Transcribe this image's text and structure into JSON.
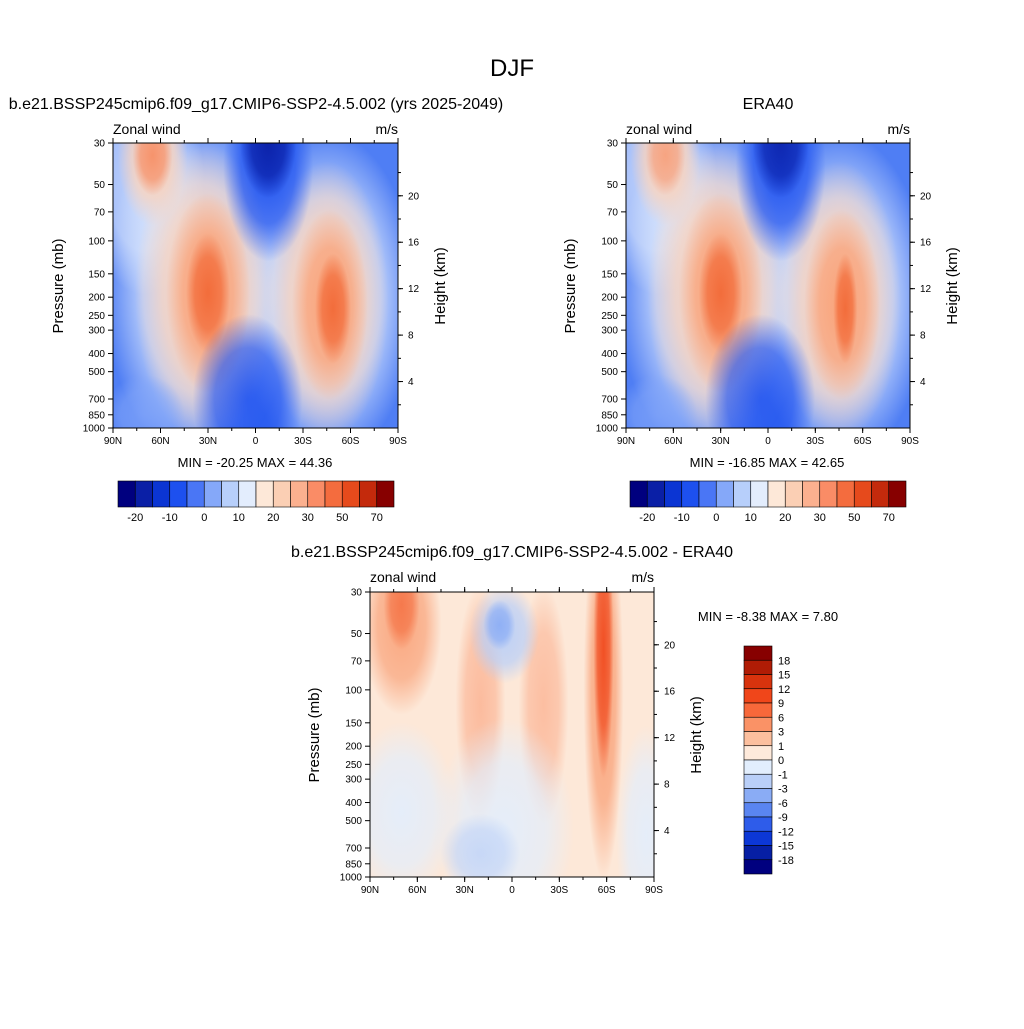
{
  "title": "DJF",
  "legend_colors": {
    "vel_min": "#00007f",
    "vel_mid_neg": "#1a46e6",
    "vel_light": "#cfe3fb",
    "vel_zero_pos": "#fde8d8",
    "vel_mid_pos": "#fa7a45",
    "vel_max": "#870000"
  },
  "panels": [
    {
      "id": "model",
      "title": "b.e21.BSSP245cmip6.f09_g17.CMIP6-SSP2-4.5.002 (yrs 2025-2049)",
      "left_label": "Zonal wind",
      "right_label": "m/s",
      "ylabel": "Pressure (mb)",
      "y2label": "Height (km)",
      "stats": "MIN = -20.25  MAX =  44.36"
    },
    {
      "id": "obs",
      "title": "ERA40",
      "left_label": "zonal wind",
      "right_label": "m/s",
      "ylabel": "Pressure (mb)",
      "y2label": "Height (km)",
      "stats": "MIN = -16.85  MAX =  42.65"
    },
    {
      "id": "diff",
      "title": "b.e21.BSSP245cmip6.f09_g17.CMIP6-SSP2-4.5.002 - ERA40",
      "left_label": "zonal wind",
      "right_label": "m/s",
      "ylabel": "Pressure (mb)",
      "y2label": "Height (km)",
      "stats": "MIN =  -8.38  MAX =   7.80"
    }
  ],
  "chart_data": [
    {
      "type": "heatmap",
      "panel": "model",
      "x": [
        "90N",
        "60N",
        "30N",
        "0",
        "30S",
        "60S",
        "90S"
      ],
      "y_pressure_ticks": [
        30,
        50,
        70,
        100,
        150,
        200,
        250,
        300,
        400,
        500,
        700,
        850,
        1000
      ],
      "y_height_ticks": [
        4,
        8,
        12,
        16,
        20
      ],
      "ylim": [
        1000,
        30
      ],
      "colorbar": {
        "orientation": "horizontal",
        "tick_labels": [
          "-20",
          "-10",
          "0",
          "10",
          "20",
          "30",
          "50",
          "70"
        ],
        "colors": [
          "#00007f",
          "#0a1fa6",
          "#0b35d3",
          "#1d50ef",
          "#4a76f5",
          "#85a8f9",
          "#b7cffb",
          "#e3edfd",
          "#fde8d8",
          "#fbcfb4",
          "#fbb08f",
          "#fa8c66",
          "#f46c3e",
          "#e64a1c",
          "#c42a0c",
          "#870000"
        ]
      },
      "features": [
        {
          "desc": "NH subtropical jet",
          "lat": "30N",
          "p": 200,
          "value": 40
        },
        {
          "desc": "SH subtropical jet",
          "lat": "45S",
          "p": 200,
          "value": 35
        },
        {
          "desc": "NH stratospheric westerlies",
          "lat": "65N",
          "p": 30,
          "value": 30
        },
        {
          "desc": "tropical stratospheric easterlies",
          "lat": "10S",
          "p": 30,
          "value": -20
        }
      ],
      "min": -20.25,
      "max": 44.36
    },
    {
      "type": "heatmap",
      "panel": "obs",
      "x": [
        "90N",
        "60N",
        "30N",
        "0",
        "30S",
        "60S",
        "90S"
      ],
      "y_pressure_ticks": [
        30,
        50,
        70,
        100,
        150,
        200,
        250,
        300,
        400,
        500,
        700,
        850,
        1000
      ],
      "y_height_ticks": [
        4,
        8,
        12,
        16,
        20
      ],
      "ylim": [
        1000,
        30
      ],
      "colorbar": {
        "orientation": "horizontal",
        "tick_labels": [
          "-20",
          "-10",
          "0",
          "10",
          "20",
          "30",
          "50",
          "70"
        ],
        "colors": [
          "#00007f",
          "#0a1fa6",
          "#0b35d3",
          "#1d50ef",
          "#4a76f5",
          "#85a8f9",
          "#b7cffb",
          "#e3edfd",
          "#fde8d8",
          "#fbcfb4",
          "#fbb08f",
          "#fa8c66",
          "#f46c3e",
          "#e64a1c",
          "#c42a0c",
          "#870000"
        ]
      },
      "features": [
        {
          "desc": "NH subtropical jet",
          "lat": "30N",
          "p": 200,
          "value": 40
        },
        {
          "desc": "SH subtropical jet",
          "lat": "45S",
          "p": 250,
          "value": 35
        },
        {
          "desc": "NH stratospheric westerlies",
          "lat": "65N",
          "p": 30,
          "value": 20
        },
        {
          "desc": "tropical stratospheric easterlies",
          "lat": "10S",
          "p": 30,
          "value": -15
        }
      ],
      "min": -16.85,
      "max": 42.65
    },
    {
      "type": "heatmap",
      "panel": "diff",
      "x": [
        "90N",
        "60N",
        "30N",
        "0",
        "30S",
        "60S",
        "90S"
      ],
      "y_pressure_ticks": [
        30,
        50,
        70,
        100,
        150,
        200,
        250,
        300,
        400,
        500,
        700,
        850,
        1000
      ],
      "y_height_ticks": [
        4,
        8,
        12,
        16,
        20
      ],
      "ylim": [
        1000,
        30
      ],
      "colorbar": {
        "orientation": "vertical",
        "tick_labels": [
          "18",
          "15",
          "12",
          "9",
          "6",
          "3",
          "1",
          "0",
          "-1",
          "-3",
          "-6",
          "-9",
          "-12",
          "-15",
          "-18"
        ],
        "colors": [
          "#870000",
          "#b01c05",
          "#d8330d",
          "#f0461a",
          "#f7683a",
          "#fa9266",
          "#fcbf9e",
          "#feeadb",
          "#e2eefd",
          "#b9cff8",
          "#8aacf5",
          "#5a85f1",
          "#2e5cea",
          "#0c37d6",
          "#061fa4",
          "#00007f"
        ]
      },
      "features": [
        {
          "desc": "positive band",
          "lat": "60S",
          "p": 100,
          "value": 6
        },
        {
          "desc": "positive patch",
          "lat": "70N",
          "p": 50,
          "value": 5
        },
        {
          "desc": "negative patch",
          "lat": "5N",
          "p": 50,
          "value": -3
        }
      ],
      "min": -8.38,
      "max": 7.8
    }
  ]
}
